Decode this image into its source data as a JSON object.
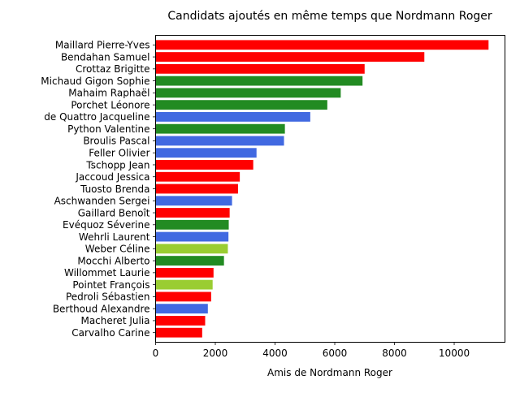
{
  "chart_data": {
    "type": "bar",
    "orientation": "horizontal",
    "title": "Candidats ajoutés en même temps que Nordmann Roger",
    "xlabel": "Amis de Nordmann Roger",
    "ylabel": "",
    "xlim": [
      0,
      11700
    ],
    "xticks": [
      0,
      2000,
      4000,
      6000,
      8000,
      10000
    ],
    "grid": false,
    "legend": "none",
    "categories": [
      "Maillard Pierre-Yves",
      "Bendahan Samuel",
      "Crottaz Brigitte",
      "Michaud Gigon Sophie",
      "Mahaim Raphaël",
      "Porchet Léonore",
      "de Quattro Jacqueline",
      "Python Valentine",
      "Broulis Pascal",
      "Feller Olivier",
      "Tschopp Jean",
      "Jaccoud Jessica",
      "Tuosto Brenda",
      "Aschwanden Sergei",
      "Gaillard Benoît",
      "Evéquoz Séverine",
      "Wehrli Laurent",
      "Weber Céline",
      "Mocchi Alberto",
      "Willommet Laurie",
      "Pointet François",
      "Pedroli Sébastien",
      "Berthoud Alexandre",
      "Macheret Julia",
      "Carvalho Carine"
    ],
    "values": [
      11150,
      9000,
      7000,
      6930,
      6200,
      5750,
      5180,
      4330,
      4300,
      3380,
      3270,
      2820,
      2760,
      2560,
      2480,
      2450,
      2440,
      2420,
      2290,
      1940,
      1910,
      1860,
      1750,
      1660,
      1560
    ],
    "colors": [
      "#ff0000",
      "#ff0000",
      "#ff0000",
      "#228b22",
      "#228b22",
      "#228b22",
      "#4169e1",
      "#228b22",
      "#4169e1",
      "#4169e1",
      "#ff0000",
      "#ff0000",
      "#ff0000",
      "#4169e1",
      "#ff0000",
      "#228b22",
      "#4169e1",
      "#9acd32",
      "#228b22",
      "#ff0000",
      "#9acd32",
      "#ff0000",
      "#4169e1",
      "#ff0000",
      "#ff0000"
    ]
  }
}
